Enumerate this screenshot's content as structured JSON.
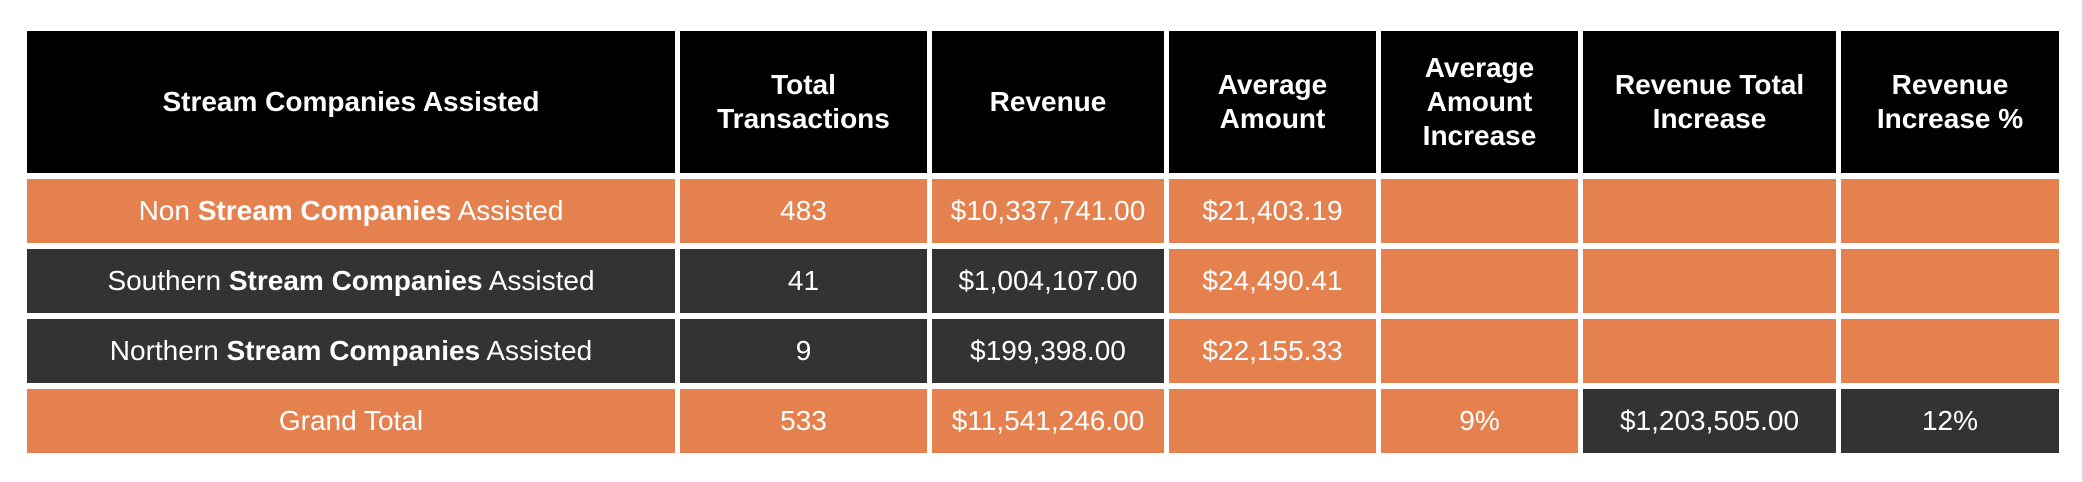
{
  "colors": {
    "header": "#000000",
    "orange": "#e4814f",
    "dark": "#333333"
  },
  "headers": [
    "Stream Companies Assisted",
    "Total Transactions",
    "Revenue",
    "Average Amount",
    "Average Amount Increase",
    "Revenue Total Increase",
    "Revenue Increase %"
  ],
  "rows": [
    {
      "prefix": "Non ",
      "bold": "Stream Companies",
      "suffix": " Assisted",
      "transactions": "483",
      "revenue": "$10,337,741.00",
      "average": "$21,403.19",
      "avg_increase": "",
      "rev_increase": "",
      "rev_increase_pct": ""
    },
    {
      "prefix": "Southern ",
      "bold": "Stream Companies",
      "suffix": " Assisted",
      "transactions": "41",
      "revenue": "$1,004,107.00",
      "average": "$24,490.41",
      "avg_increase": "",
      "rev_increase": "",
      "rev_increase_pct": ""
    },
    {
      "prefix": "Northern ",
      "bold": "Stream Companies",
      "suffix": " Assisted",
      "transactions": "9",
      "revenue": "$199,398.00",
      "average": "$22,155.33",
      "avg_increase": "",
      "rev_increase": "",
      "rev_increase_pct": ""
    }
  ],
  "total": {
    "label": "Grand Total",
    "transactions": "533",
    "revenue": "$11,541,246.00",
    "average": "",
    "avg_increase": "9%",
    "rev_increase": "$1,203,505.00",
    "rev_increase_pct": "12%"
  }
}
